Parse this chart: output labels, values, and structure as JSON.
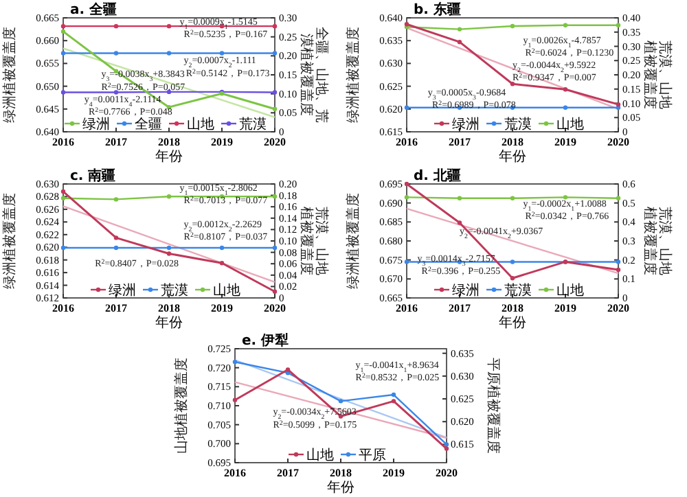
{
  "chart_data": [
    {
      "type": "line",
      "title": "a. 全疆",
      "xlabel": "年份",
      "ylabel": "绿洲植被覆盖度",
      "y2label": "全疆、山地、荒漠植被覆盖度",
      "x": [
        2016,
        2017,
        2018,
        2019,
        2020
      ],
      "xlim": [
        2016,
        2020
      ],
      "xticks": [
        2016,
        2017,
        2018,
        2019,
        2020
      ],
      "ylim": [
        0.64,
        0.665
      ],
      "yticks": [
        {
          "value": 0.64,
          "label": "0.640"
        },
        0.645,
        {
          "value": 0.65,
          "label": "0.650"
        },
        0.655,
        {
          "value": 0.66,
          "label": "0.660"
        },
        0.665
      ],
      "y2lim": [
        0,
        0.3
      ],
      "y2ticks": [
        0,
        0.05,
        {
          "value": 0.1,
          "label": "0.10"
        },
        0.15,
        {
          "value": 0.2,
          "label": "0.20"
        },
        0.25,
        {
          "value": 0.3,
          "label": "0.30"
        }
      ],
      "legend": "bottom",
      "marker": "circle",
      "line_style": "solid",
      "series": [
        {
          "name": "绿洲",
          "color": "#7dc443",
          "values": [
            0.662,
            0.6533,
            0.6454,
            0.6484,
            0.645
          ]
        },
        {
          "name": "全疆",
          "color": "#3a86e8",
          "axis": "y2",
          "values": [
            0.207,
            0.207,
            0.207,
            0.207,
            0.207
          ]
        },
        {
          "name": "山地",
          "color": "#d0335a",
          "axis": "y2",
          "values": [
            0.278,
            0.278,
            0.278,
            0.278,
            0.278
          ]
        },
        {
          "name": "荒漠",
          "color": "#6a4fe0",
          "axis": "y2",
          "values": [
            0.104,
            0.104,
            0.105,
            0.105,
            0.104
          ]
        },
        {
          "color": "#c4e6a4",
          "values": [
            0.6583,
            null,
            null,
            null,
            0.6432
          ],
          "marker": "none"
        }
      ],
      "annotations": [
        "y$_{1}$=0.0009x$_{1}$-1.5145",
        "R$^{2}$=0.5235，P=0.167",
        "y$_{2}$=0.0007x$_{2}$-1.111",
        "R$^{2}$=0.5142，P=0.173",
        "y$_{3}$=-0.0038x$_{3}$+8.3843",
        "R$^{2}$=0.7526，P=0.057",
        "y$_{4}$=0.0011x$_{4}$-2.1114",
        "R$^{2}$=0.7766，P=0.048"
      ]
    },
    {
      "type": "line",
      "title": "b. 东疆",
      "xlabel": "年份",
      "ylabel": "绿洲植被覆盖度",
      "y2label": "荒漠、山地植被覆盖度",
      "x": [
        2016,
        2017,
        2018,
        2019,
        2020
      ],
      "xlim": [
        2016,
        2020
      ],
      "xticks": [
        2016,
        2017,
        2018,
        2019,
        2020
      ],
      "ylim": [
        0.615,
        0.64
      ],
      "yticks": [
        0.615,
        {
          "value": 0.62,
          "label": "0.620"
        },
        0.625,
        {
          "value": 0.63,
          "label": "0.630"
        },
        0.635,
        {
          "value": 0.64,
          "label": "0.640"
        }
      ],
      "y2lim": [
        0,
        0.4
      ],
      "y2ticks": [
        0,
        0.05,
        {
          "value": 0.1,
          "label": "0.10"
        },
        0.15,
        {
          "value": 0.2,
          "label": "0.20"
        },
        0.25,
        {
          "value": 0.3,
          "label": "0.30"
        },
        0.35,
        {
          "value": 0.4,
          "label": "0.40"
        }
      ],
      "legend": "bottom",
      "marker": "circle",
      "line_style": "solid",
      "series": [
        {
          "name": "绿洲",
          "color": "#c0395a",
          "values": [
            0.6386,
            0.6347,
            0.6255,
            0.6243,
            0.621
          ]
        },
        {
          "name": "荒漠",
          "color": "#3a86e8",
          "axis": "y2",
          "values": [
            0.085,
            0.085,
            0.085,
            0.085,
            0.085
          ]
        },
        {
          "name": "山地",
          "color": "#7dc443",
          "axis": "y2",
          "values": [
            0.368,
            0.36,
            0.371,
            0.374,
            0.374
          ]
        },
        {
          "color": "#eaa8b8",
          "values": [
            0.6378,
            null,
            null,
            null,
            0.62
          ],
          "marker": "none"
        }
      ],
      "annotations": [
        "y$_{1}$=0.0026x$_{1}$-4.7857",
        "R$^{2}$=0.6024，P=0.1230",
        "y$_{2}$=-0.0044x$_{2}$+9.5922",
        "R$^{2}$=0.9347，P=0.007",
        "y$_{3}$=0.0005x$_{3}$-0.9684",
        "R$^{2}$=0.6989，P=0.078"
      ]
    },
    {
      "type": "line",
      "title": "c. 南疆",
      "xlabel": "年份",
      "ylabel": "绿洲植被覆盖度",
      "y2label": "荒漠、山地植被覆盖度",
      "x": [
        2016,
        2017,
        2018,
        2019,
        2020
      ],
      "xlim": [
        2016,
        2020
      ],
      "xticks": [
        2016,
        2017,
        2018,
        2019,
        2020
      ],
      "ylim": [
        0.612,
        0.63
      ],
      "yticks": [
        0.612,
        0.614,
        0.616,
        0.618,
        {
          "value": 0.62,
          "label": "0.620"
        },
        0.622,
        0.624,
        0.626,
        0.628,
        {
          "value": 0.63,
          "label": "0.630"
        }
      ],
      "y2lim": [
        0,
        0.2
      ],
      "y2ticks": [
        0,
        0.02,
        0.04,
        0.06,
        0.08,
        {
          "value": 0.1,
          "label": "0.10"
        },
        0.12,
        0.14,
        0.16,
        0.18,
        {
          "value": 0.2,
          "label": "0.20"
        }
      ],
      "legend": "bottom",
      "marker": "circle",
      "line_style": "solid",
      "series": [
        {
          "name": "绿洲",
          "color": "#c0395a",
          "values": [
            0.6288,
            0.6215,
            0.619,
            0.6175,
            0.613
          ]
        },
        {
          "name": "荒漠",
          "color": "#3a86e8",
          "axis": "y2",
          "values": [
            0.088,
            0.088,
            0.088,
            0.088,
            0.088
          ]
        },
        {
          "name": "山地",
          "color": "#7dc443",
          "axis": "y2",
          "values": [
            0.175,
            0.173,
            0.178,
            0.178,
            0.178
          ]
        },
        {
          "color": "#eaa8b8",
          "values": [
            0.6265,
            null,
            null,
            null,
            0.6145
          ],
          "marker": "none"
        }
      ],
      "annotations": [
        "y$_{1}$=0.0015x$_{1}$-2.8062",
        "R$^{2}$=0.7013，P=0.077",
        "y$_{2}$=0.0012x$_{2}$-2.2629",
        "R$^{2}$=0.8107，P=0.037",
        "R$^{2}$=0.8407，P=0.028"
      ]
    },
    {
      "type": "line",
      "title": "d. 北疆",
      "xlabel": "年份",
      "ylabel": "绿洲植被覆盖度",
      "y2label": "荒漠、山地植被覆盖度",
      "x": [
        2016,
        2017,
        2018,
        2019,
        2020
      ],
      "xlim": [
        2016,
        2020
      ],
      "xticks": [
        2016,
        2017,
        2018,
        2019,
        2020
      ],
      "ylim": [
        0.665,
        0.695
      ],
      "yticks": [
        0.665,
        {
          "value": 0.67,
          "label": "0.670"
        },
        0.675,
        {
          "value": 0.68,
          "label": "0.680"
        },
        0.685,
        {
          "value": 0.69,
          "label": "0.690"
        },
        0.695
      ],
      "y2lim": [
        0,
        0.6
      ],
      "y2ticks": [
        0,
        0.1,
        0.2,
        0.3,
        0.4,
        0.5,
        0.6
      ],
      "legend": "bottom",
      "marker": "circle",
      "line_style": "solid",
      "series": [
        {
          "name": "绿洲",
          "color": "#c0395a",
          "values": [
            0.695,
            0.6848,
            0.6702,
            0.6745,
            0.6724
          ]
        },
        {
          "name": "荒漠",
          "color": "#3a86e8",
          "axis": "y2",
          "values": [
            0.19,
            0.19,
            0.19,
            0.19,
            0.19
          ]
        },
        {
          "name": "山地",
          "color": "#7dc443",
          "axis": "y2",
          "values": [
            0.53,
            0.525,
            0.525,
            0.53,
            0.525
          ]
        },
        {
          "color": "#eaa8b8",
          "values": [
            0.6885,
            null,
            null,
            null,
            0.6715
          ],
          "marker": "none"
        }
      ],
      "annotations": [
        "y$_{1}$=-0.0002x$_{1}$+1.0088",
        "R$^{2}$=0.0342，P=0.766",
        "y$_{2}$=-0.0041x$_{2}$+9.0367",
        "y$_{3}$=0.0014x$_{3}$-2.7157",
        "R$^{2}$=0.396，P=0.255"
      ]
    },
    {
      "type": "line",
      "title": "e. 伊犁",
      "xlabel": "年份",
      "ylabel": "山地植被覆盖度",
      "y2label": "平原植被覆盖度",
      "x": [
        2016,
        2017,
        2018,
        2019,
        2020
      ],
      "xlim": [
        2016,
        2020
      ],
      "xticks": [
        2016,
        2017,
        2018,
        2019,
        2020
      ],
      "ylim": [
        0.695,
        0.725
      ],
      "yticks": [
        0.695,
        {
          "value": 0.7,
          "label": "0.700"
        },
        0.705,
        {
          "value": 0.71,
          "label": "0.710"
        },
        0.715,
        {
          "value": 0.72,
          "label": "0.720"
        },
        0.725
      ],
      "y2lim": [
        0.611,
        0.636
      ],
      "y2ticks": [
        0.615,
        {
          "value": 0.62,
          "label": "0.620"
        },
        0.625,
        {
          "value": 0.63,
          "label": "0.630"
        },
        0.635
      ],
      "legend": "bottom",
      "marker": "circle",
      "line_style": "solid",
      "series": [
        {
          "name": "山地",
          "color": "#c0395a",
          "values": [
            0.7115,
            0.7195,
            0.7072,
            0.7112,
            0.6987
          ]
        },
        {
          "name": "平原",
          "color": "#3a86e8",
          "axis": "y2",
          "values": [
            0.6331,
            0.6307,
            0.6245,
            0.6259,
            0.615
          ]
        },
        {
          "color": "#eaa8b8",
          "values": [
            0.7162,
            null,
            null,
            null,
            0.7015
          ],
          "marker": "none"
        },
        {
          "color": "#a8c8f4",
          "axis": "y2",
          "values": [
            0.6335,
            null,
            null,
            null,
            0.6165
          ],
          "marker": "none"
        }
      ],
      "annotations": [
        "y$_{1}$=-0.0041x$_{1}$+8.9634",
        "R$^{2}$=0.8532，P=0.025",
        "y$_{2}$=-0.0034x$_{2}$+7.5603",
        "R$^{2}$=0.5099，P=0.175"
      ]
    }
  ]
}
